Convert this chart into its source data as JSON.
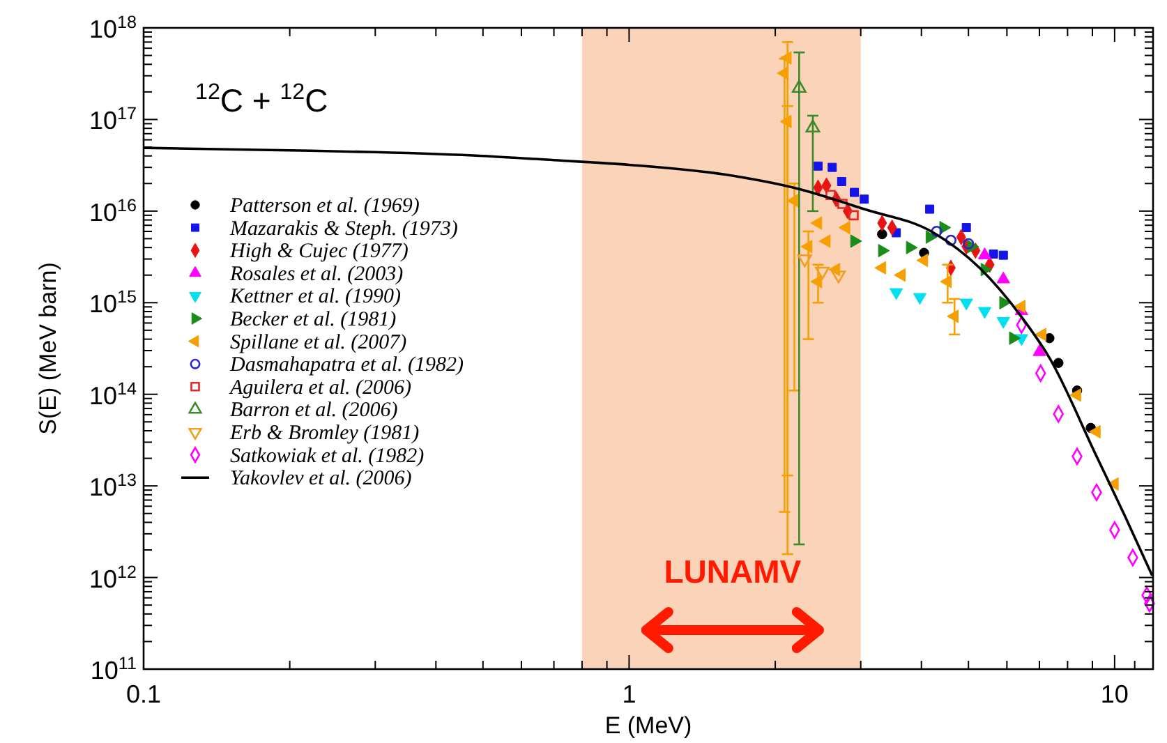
{
  "chart_data": {
    "type": "scatter",
    "xlabel": "E (MeV)",
    "ylabel": "S(E) (MeV barn)",
    "log": "xy",
    "legend": "left",
    "annotations": [
      "$^{12}$C + $^{12}$C"
    ],
    "xlim": [
      0.1,
      12
    ],
    "ylim": [
      100000000000.0,
      1e+18
    ],
    "xticks": [
      0.1,
      {
        "value": 0.2,
        "label": null
      },
      {
        "value": 0.3,
        "label": null
      },
      {
        "value": 0.4,
        "label": null
      },
      {
        "value": 0.5,
        "label": null
      },
      {
        "value": 0.6,
        "label": null
      },
      {
        "value": 0.7,
        "label": null
      },
      {
        "value": 0.8,
        "label": null
      },
      {
        "value": 0.9,
        "label": null
      },
      1,
      {
        "value": 2,
        "label": null
      },
      {
        "value": 3,
        "label": null
      },
      {
        "value": 4,
        "label": null
      },
      {
        "value": 5,
        "label": null
      },
      {
        "value": 6,
        "label": null
      },
      {
        "value": 7,
        "label": null
      },
      {
        "value": 8,
        "label": null
      },
      {
        "value": 9,
        "label": null
      },
      10,
      {
        "value": 11,
        "label": null
      }
    ],
    "yticks": [
      {
        "value": 100000000000.0,
        "label": "10$^{11}$"
      },
      {
        "value": 1000000000000.0,
        "label": "10$^{12}$"
      },
      {
        "value": 10000000000000.0,
        "label": "10$^{13}$"
      },
      {
        "value": 100000000000000.0,
        "label": "10$^{14}$"
      },
      {
        "value": 1000000000000000.0,
        "label": "10$^{15}$"
      },
      {
        "value": 1e+16,
        "label": "10$^{16}$"
      },
      {
        "value": 1e+17,
        "label": "10$^{17}$"
      },
      {
        "value": 1e+18,
        "label": "10$^{18}$"
      },
      {
        "value": 200000000000.0,
        "label": null
      },
      {
        "value": 300000000000.0,
        "label": null
      },
      {
        "value": 400000000000.0,
        "label": null
      },
      {
        "value": 500000000000.0,
        "label": null
      },
      {
        "value": 600000000000.0,
        "label": null
      },
      {
        "value": 700000000000.0,
        "label": null
      },
      {
        "value": 800000000000.0,
        "label": null
      },
      {
        "value": 900000000000.0,
        "label": null
      },
      {
        "value": 2000000000000.0,
        "label": null
      },
      {
        "value": 3000000000000.0,
        "label": null
      },
      {
        "value": 4000000000000.0,
        "label": null
      },
      {
        "value": 5000000000000.0,
        "label": null
      },
      {
        "value": 6000000000000.0,
        "label": null
      },
      {
        "value": 7000000000000.0,
        "label": null
      },
      {
        "value": 8000000000000.0,
        "label": null
      },
      {
        "value": 9000000000000.0,
        "label": null
      },
      {
        "value": 20000000000000.0,
        "label": null
      },
      {
        "value": 30000000000000.0,
        "label": null
      },
      {
        "value": 40000000000000.0,
        "label": null
      },
      {
        "value": 50000000000000.0,
        "label": null
      },
      {
        "value": 60000000000000.0,
        "label": null
      },
      {
        "value": 70000000000000.0,
        "label": null
      },
      {
        "value": 80000000000000.0,
        "label": null
      },
      {
        "value": 90000000000000.0,
        "label": null
      },
      {
        "value": 200000000000000.0,
        "label": null
      },
      {
        "value": 300000000000000.0,
        "label": null
      },
      {
        "value": 400000000000000.0,
        "label": null
      },
      {
        "value": 500000000000000.0,
        "label": null
      },
      {
        "value": 600000000000000.0,
        "label": null
      },
      {
        "value": 700000000000000.0,
        "label": null
      },
      {
        "value": 800000000000000.0,
        "label": null
      },
      {
        "value": 900000000000000.0,
        "label": null
      },
      {
        "value": 2000000000000000.0,
        "label": null
      },
      {
        "value": 3000000000000000.0,
        "label": null
      },
      {
        "value": 4000000000000000.0,
        "label": null
      },
      {
        "value": 5000000000000000.0,
        "label": null
      },
      {
        "value": 6000000000000000.0,
        "label": null
      },
      {
        "value": 7000000000000000.0,
        "label": null
      },
      {
        "value": 8000000000000000.0,
        "label": null
      },
      {
        "value": 9000000000000000.0,
        "label": null
      },
      {
        "value": 2e+16,
        "label": null
      },
      {
        "value": 3e+16,
        "label": null
      },
      {
        "value": 4e+16,
        "label": null
      },
      {
        "value": 5e+16,
        "label": null
      },
      {
        "value": 6e+16,
        "label": null
      },
      {
        "value": 7e+16,
        "label": null
      },
      {
        "value": 8e+16,
        "label": null
      },
      {
        "value": 9e+16,
        "label": null
      },
      {
        "value": 2e+17,
        "label": null
      },
      {
        "value": 3e+17,
        "label": null
      },
      {
        "value": 4e+17,
        "label": null
      },
      {
        "value": 5e+17,
        "label": null
      },
      {
        "value": 6e+17,
        "label": null
      },
      {
        "value": 7e+17,
        "label": null
      },
      {
        "value": 8e+17,
        "label": null
      },
      {
        "value": 9e+17,
        "label": null
      }
    ],
    "bands": [
      {
        "axis": "x",
        "from": 0.8,
        "to": 3,
        "label": "LUNAMV",
        "color": "#fbd3b8"
      }
    ],
    "series": [
      {
        "name": "Patterson et al. (1969)",
        "color": "#000000",
        "marker": "circle",
        "x": [
          3.32,
          4.05,
          7.34,
          7.66,
          8.37,
          8.93
        ],
        "values": [
          5600000000000000.0,
          3500000000000000.0,
          410000000000000.0,
          220000000000000.0,
          110000000000000.0,
          43000000000000.0
        ]
      },
      {
        "name": "Mazarakis & Steph. (1973)",
        "color": "#1414e6",
        "marker": "square",
        "x": [
          2.45,
          2.62,
          2.74,
          2.91,
          3.05,
          3.55,
          4.16,
          4.95,
          5.63,
          5.9
        ],
        "values": [
          3.1e+16,
          3e+16,
          2.1e+16,
          1.6e+16,
          1.35e+16,
          5800000000000000.0,
          1.05e+16,
          6600000000000000.0,
          3400000000000000.0,
          3300000000000000.0
        ]
      },
      {
        "name": "High & Cujec (1977)",
        "color": "#e81414",
        "marker": "diamond",
        "x": [
          2.45,
          2.55,
          2.67,
          2.82,
          3.32,
          3.48,
          4.6,
          4.83,
          4.95,
          5.17,
          5.53
        ],
        "values": [
          1.8e+16,
          1.9e+16,
          1.35e+16,
          1e+16,
          7400000000000000.0,
          6600000000000000.0,
          2400000000000000.0,
          5200000000000000.0,
          4100000000000000.0,
          3700000000000000.0,
          2600000000000000.0
        ]
      },
      {
        "name": "Rosales et al. (2003)",
        "color": "#ff00ff",
        "marker": "triangle",
        "x": [
          5.4,
          5.9,
          6.43,
          7.0
        ],
        "values": [
          3300000000000000.0,
          1800000000000000.0,
          810000000000000.0,
          290000000000000.0
        ]
      },
      {
        "name": "Kettner et al. (1990)",
        "color": "#00e0ee",
        "marker": "triangle-down",
        "x": [
          3.55,
          3.97,
          4.95,
          5.4,
          5.9,
          6.43
        ],
        "values": [
          1300000000000000.0,
          1150000000000000.0,
          1000000000000000.0,
          810000000000000.0,
          630000000000000.0,
          410000000000000.0
        ]
      },
      {
        "name": "Becker et al. (1981)",
        "color": "#1a8c1a",
        "marker": "triangle-right",
        "x": [
          2.91,
          3.32,
          3.79,
          4.16,
          4.44,
          5.07,
          5.4,
          5.9,
          6.18
        ],
        "values": [
          4700000000000000.0,
          3700000000000000.0,
          4000000000000000.0,
          5200000000000000.0,
          6600000000000000.0,
          4100000000000000.0,
          2300000000000000.0,
          1000000000000000.0,
          410000000000000.0
        ]
      },
      {
        "name": "Spillane et al. (2007)",
        "color": "#f5a000",
        "marker": "triangle-left",
        "x": [
          2.12,
          2.09,
          2.12,
          2.19,
          2.34,
          2.45,
          2.45,
          2.55,
          2.67,
          2.8,
          3.32,
          3.64,
          4.05,
          4.53,
          4.68,
          6.43,
          7.1,
          8.37,
          9.18,
          10.0
        ],
        "values": [
          4.7e+17,
          3.2e+17,
          9.5e+16,
          1.3e+16,
          4100000000000000.0,
          7400000000000000.0,
          1700000000000000.0,
          4700000000000000.0,
          2300000000000000.0,
          6600000000000000.0,
          2400000000000000.0,
          2000000000000000.0,
          2900000000000000.0,
          1700000000000000.0,
          710000000000000.0,
          910000000000000.0,
          450000000000000.0,
          98000000000000.0,
          39000000000000.0,
          10500000000000.0
        ],
        "errors": [
          [
            1800000000000.0,
            7e+17
          ],
          [
            5200000000000.0,
            4.6e+17
          ],
          [
            13000000000000.0,
            1.4e+17
          ],
          [
            110000000000000.0,
            2e+16
          ],
          [
            400000000000000.0,
            6000000000000000.0
          ],
          null,
          [
            1000000000000000.0,
            2600000000000000.0
          ],
          null,
          null,
          null,
          null,
          null,
          null,
          [
            1000000000000000.0,
            2600000000000000.0
          ],
          [
            450000000000000.0,
            1100000000000000.0
          ],
          null,
          null,
          null,
          null,
          null
        ]
      },
      {
        "name": "Dasmahapatra et al. (1982)",
        "color": "#2828c8",
        "marker": "circle-open",
        "x": [
          4.3,
          4.6,
          5.0
        ],
        "values": [
          6000000000000000.0,
          4800000000000000.0,
          4400000000000000.0
        ]
      },
      {
        "name": "Aguilera et al. (2006)",
        "color": "#e02828",
        "marker": "square-open",
        "x": [
          2.6,
          2.75,
          2.9
        ],
        "values": [
          1.5e+16,
          1.2e+16,
          9000000000000000.0
        ]
      },
      {
        "name": "Barron et al. (2006)",
        "color": "#3a8a2a",
        "marker": "triangle-open",
        "x": [
          2.24,
          2.39
        ],
        "values": [
          2.2e+17,
          8.1e+16
        ],
        "errors": [
          [
            2300000000000.0,
            5.4e+17
          ],
          [
            1e+16,
            1.1e+17
          ]
        ]
      },
      {
        "name": "Erb & Bromley (1981)",
        "color": "#f0a020",
        "marker": "triangle-down-open",
        "x": [
          2.3,
          2.5,
          2.7
        ],
        "values": [
          3000000000000000.0,
          2200000000000000.0,
          2000000000000000.0
        ]
      },
      {
        "name": "Satkowiak et al. (1982)",
        "color": "#ff00ff",
        "marker": "diamond-open",
        "x": [
          6.43,
          7.04,
          7.66,
          8.37,
          9.18,
          10.0,
          10.9,
          11.65,
          11.8
        ],
        "values": [
          570000000000000.0,
          170000000000000.0,
          61000000000000.0,
          21000000000000.0,
          8500000000000.0,
          3300000000000.0,
          1650000000000.0,
          640000000000.0,
          520000000000.0
        ]
      },
      {
        "name": "Yakovlev et al. (2006)",
        "type": "line",
        "color": "#000000",
        "marker": "none",
        "line_style": "solid",
        "x": [
          0.1,
          0.2,
          0.3,
          0.5,
          0.7,
          1,
          1.58,
          2.24,
          3.05,
          4.24,
          5.27,
          6.43,
          7.34,
          9.18,
          10.5,
          11.95
        ],
        "values": [
          4.9e+16,
          4.6e+16,
          4.4e+16,
          4e+16,
          3.6e+16,
          3.2e+16,
          2.5e+16,
          1.74e+16,
          1.05e+16,
          5800000000000000.0,
          2400000000000000.0,
          700000000000000.0,
          250000000000000.0,
          21000000000000.0,
          4700000000000.0,
          1050000000000.0
        ]
      }
    ]
  }
}
